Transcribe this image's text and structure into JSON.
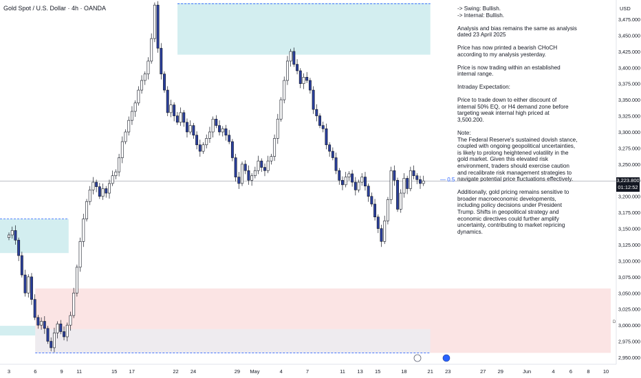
{
  "header": {
    "symbol": "Gold Spot / U.S. Dollar · 4h · OANDA"
  },
  "notes": {
    "line1": "-> Swing:  Bullish.",
    "line2": "-> Internal:  Bullish.",
    "para1": "Analysis and bias remains the same as analysis\ndated 23 April 2025",
    "para2": "Price has now printed a bearish CHoCH\naccording to my analysis yesterday.",
    "para3": "Price is now trading within an established\ninternal range.",
    "para4": "Intraday Expectation:",
    "para5": "Price to trade down to either discount of\ninternal 50% EQ, or H4 demand zone before\ntargeting weak internal high priced at\n3,500.200.",
    "para6": "Note:\nThe Federal Reserve's sustained dovish stance,\ncoupled with ongoing geopolitical uncertainties,\nis likely to prolong heightened volatility in the\ngold market. Given this elevated risk\nenvironment, traders should exercise caution\nand recalibrate risk management strategies to\nnavigate potential price fluctuations effectively.",
    "para7": "Additionally, gold pricing remains sensitive to\nbroader macroeconomic developments,\nincluding policy decisions under President\nTrump. Shifts in geopolitical strategy and\neconomic directives could further amplify\nuncertainty, contributing to market repricing\ndynamics."
  },
  "axis": {
    "unit": "USD",
    "current_price": "3,223.800",
    "countdown": "01:12:52",
    "eq_label": "0.5",
    "d_label": "D"
  },
  "colors": {
    "up": "#ffffff",
    "down": "#2a3f9c",
    "wick": "#131722",
    "supply_zone": "#d3eef0",
    "demand_zone": "#fbe4e4",
    "grey_zone": "#ecebf0",
    "dashed": "#2962ff"
  },
  "chart_data": {
    "type": "candlestick",
    "ylim": [
      2945,
      3500
    ],
    "yticks": [
      2950,
      2975,
      3000,
      3025,
      3050,
      3075,
      3100,
      3125,
      3150,
      3175,
      3200,
      3225,
      3250,
      3275,
      3300,
      3325,
      3350,
      3375,
      3400,
      3425,
      3450,
      3475
    ],
    "ytick_labels": [
      "2,950.000",
      "2,975.000",
      "3,000.000",
      "3,025.000",
      "3,050.000",
      "3,075.000",
      "3,100.000",
      "3,125.000",
      "3,150.000",
      "3,175.000",
      "3,200.000",
      "3,225.000",
      "3,250.000",
      "3,275.000",
      "3,300.000",
      "3,325.000",
      "3,350.000",
      "3,375.000",
      "3,400.000",
      "3,425.000",
      "3,450.000",
      "3,475.000"
    ],
    "xticks": [
      {
        "label": "3",
        "day": 3
      },
      {
        "label": "6",
        "day": 6
      },
      {
        "label": "9",
        "day": 9
      },
      {
        "label": "11",
        "day": 11
      },
      {
        "label": "15",
        "day": 15
      },
      {
        "label": "17",
        "day": 17
      },
      {
        "label": "22",
        "day": 22
      },
      {
        "label": "24",
        "day": 24
      },
      {
        "label": "29",
        "day": 29
      },
      {
        "label": "May",
        "day": 31
      },
      {
        "label": "4",
        "day": 34
      },
      {
        "label": "7",
        "day": 37
      },
      {
        "label": "11",
        "day": 41
      },
      {
        "label": "13",
        "day": 43
      },
      {
        "label": "15",
        "day": 45
      },
      {
        "label": "18",
        "day": 48
      },
      {
        "label": "21",
        "day": 51
      },
      {
        "label": "23",
        "day": 53
      },
      {
        "label": "27",
        "day": 57
      },
      {
        "label": "29",
        "day": 59
      },
      {
        "label": "Jun",
        "day": 62
      },
      {
        "label": "4",
        "day": 65
      },
      {
        "label": "6",
        "day": 67
      },
      {
        "label": "8",
        "day": 69
      },
      {
        "label": "10",
        "day": 71
      }
    ],
    "last_price": 3223.8,
    "eq_level": 3223.8,
    "zones": [
      {
        "name": "supply",
        "day_start": 22.2,
        "day_end": 51,
        "low": 3420,
        "high": 3500
      },
      {
        "name": "old-supply",
        "day_start": 3,
        "day_end": 9.8,
        "low": 3112,
        "high": 3165
      },
      {
        "name": "h4-demand",
        "day_start": 6,
        "day_end": 72,
        "low": 2957,
        "high": 3057
      },
      {
        "name": "grey",
        "day_start": 6,
        "day_end": 51,
        "low": 2957,
        "high": 2994
      },
      {
        "name": "small-cyan",
        "day_start": 3,
        "day_end": 6,
        "low": 2984,
        "high": 2999
      }
    ],
    "closes": [
      3140,
      3147,
      3132,
      3108,
      3078,
      3050,
      3075,
      3040,
      3012,
      3000,
      3006,
      2995,
      2975,
      2965,
      2988,
      3002,
      2990,
      2982,
      3000,
      3015,
      3050,
      3090,
      3130,
      3165,
      3192,
      3210,
      3222,
      3215,
      3200,
      3212,
      3205,
      3220,
      3232,
      3238,
      3260,
      3285,
      3300,
      3318,
      3332,
      3345,
      3365,
      3380,
      3390,
      3410,
      3445,
      3497,
      3430,
      3390,
      3365,
      3330,
      3342,
      3325,
      3315,
      3330,
      3315,
      3300,
      3310,
      3295,
      3280,
      3270,
      3280,
      3290,
      3300,
      3320,
      3310,
      3300,
      3305,
      3295,
      3285,
      3260,
      3230,
      3220,
      3250,
      3240,
      3225,
      3232,
      3240,
      3255,
      3245,
      3240,
      3255,
      3262,
      3290,
      3320,
      3350,
      3380,
      3410,
      3425,
      3405,
      3395,
      3375,
      3385,
      3380,
      3365,
      3335,
      3325,
      3310,
      3305,
      3280,
      3270,
      3260,
      3240,
      3225,
      3218,
      3230,
      3235,
      3222,
      3210,
      3222,
      3230,
      3216,
      3200,
      3188,
      3168,
      3150,
      3130,
      3162,
      3195,
      3240,
      3225,
      3180,
      3205,
      3228,
      3212,
      3240,
      3232,
      3226,
      3220,
      3224
    ]
  }
}
